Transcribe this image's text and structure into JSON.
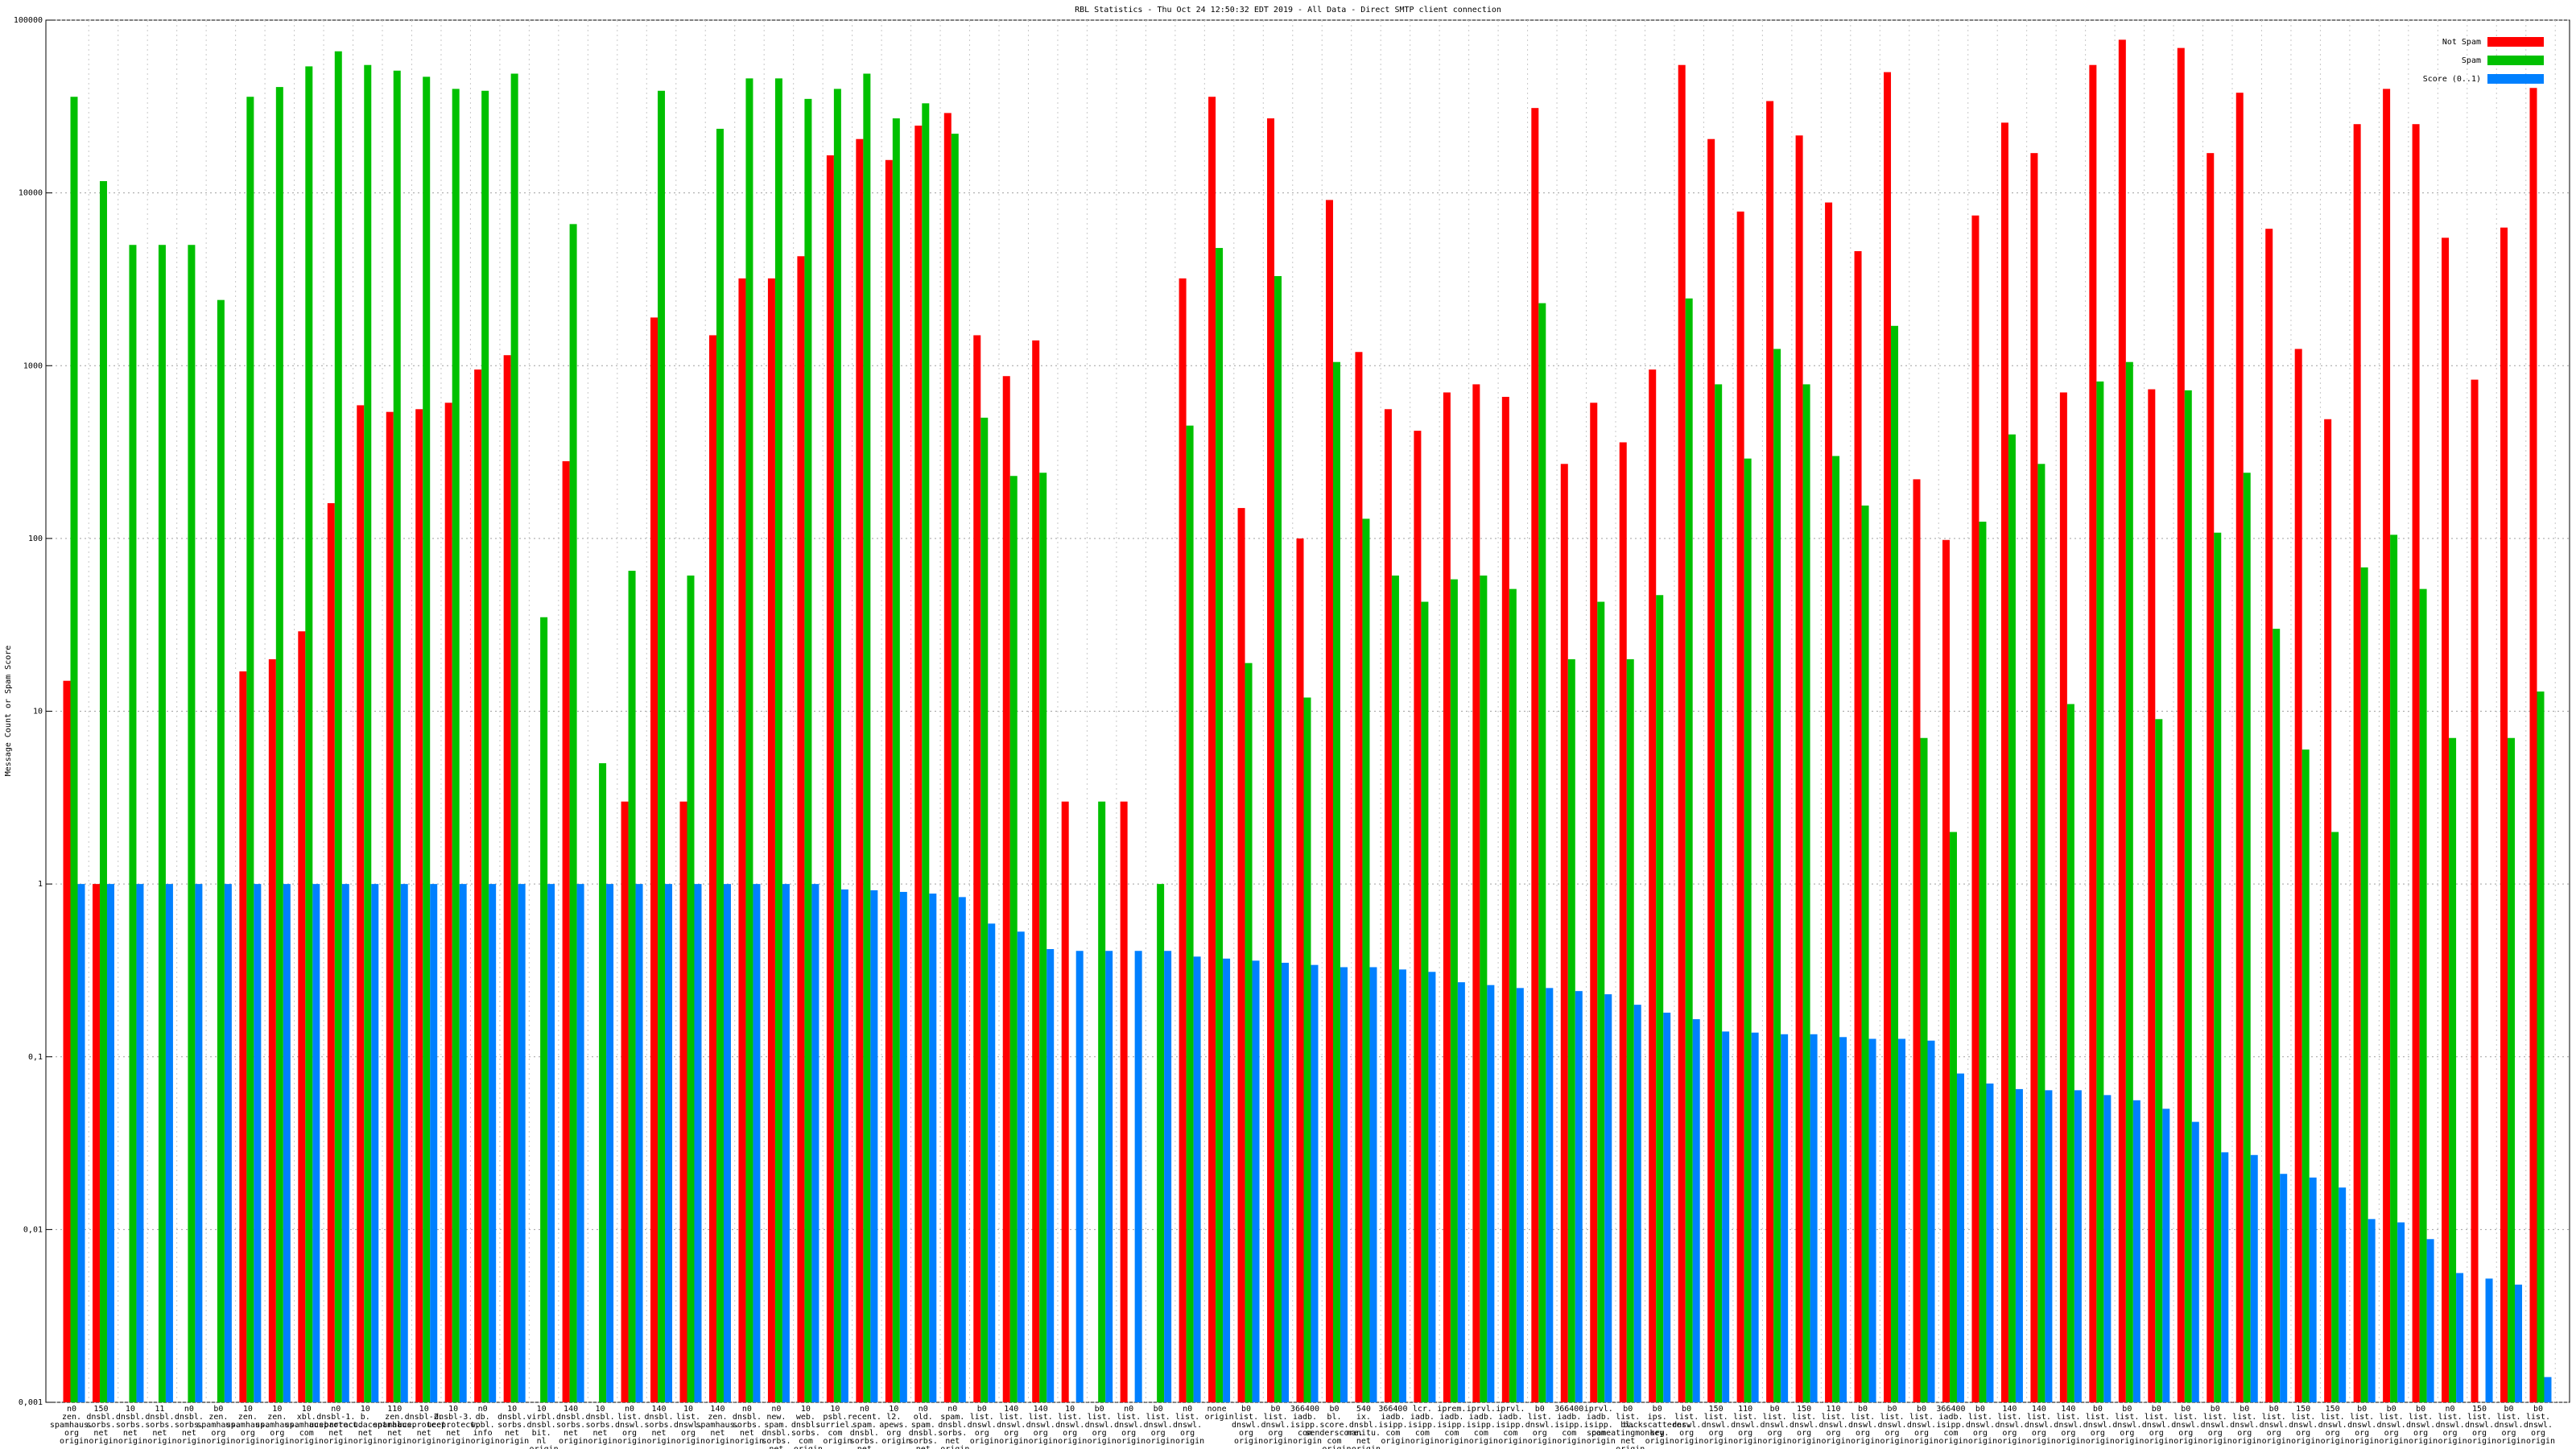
{
  "chart_data": {
    "type": "bar",
    "title": "RBL Statistics - Thu Oct 24 12:50:32 EDT 2019 - All Data - Direct SMTP client connection",
    "y_label": "Message Count or Spam Score",
    "log_scale": true,
    "grid": true,
    "legend": "top-right",
    "ylim": [
      0.001,
      100000
    ],
    "yticks": [
      {
        "value": 0.001,
        "label": "0,001"
      },
      {
        "value": 0.01,
        "label": "0,01"
      },
      {
        "value": 0.1,
        "label": "0,1"
      },
      1,
      10,
      100,
      1000,
      10000,
      100000
    ],
    "categories": [
      "n0 zen. spamhaus. org origin",
      "150 dnsbl. sorbs. net origin",
      "10 dnsbl. sorbs. net origin",
      "11 dnsbl. sorbs. net origin",
      "n0 dnsbl. sorbs. net origin",
      "b0 zen. spamhaus. org origin",
      "10 zen. spamhaus. org origin",
      "10 zen. spamhaus. org origin",
      "10 xbl. spamhaus. com origin",
      "n0 dnsbl-1. uceprotect. net origin",
      "10 b. barracudacentral. net origin",
      "110 zen. spamhaus. net origin",
      "10 dnsbl-2. uceprotect. net origin",
      "10 dnsbl-3. uceprotect. net origin",
      "n0 db. wpbl. info origin",
      "10 dnsbl. sorbs. net origin",
      "10 virbl. dnsbl. bit. nl origin",
      "140 dnsbl. sorbs. net origin",
      "10 dnsbl. sorbs. net origin",
      "n0 list. dnswl. org origin",
      "140 dnsbl. sorbs. net origin",
      "10 list. dnswl. org origin",
      "140 zen. spamhaus. net origin",
      "n0 dnsbl. sorbs. net origin",
      "n0 new. spam. dnsbl. sorbs. net origin",
      "10 web. dnsbl. sorbs. com origin",
      "10 psbl. surriel. com origin",
      "n0 recent. spam. dnsbl. sorbs. net origin",
      "10 l2. apews. org origin",
      "n0 old. spam. dnsbl. sorbs. net origin",
      "n0 spam. dnsbl. sorbs. net origin",
      "b0 list. dnswl. org origin",
      "140 list. dnswl. org origin",
      "140 list. dnswl. org origin",
      "10 list. dnswl. org origin",
      "b0 list. dnswl. org origin",
      "n0 list. dnswl. org origin",
      "b0 list. dnswl. org origin",
      "n0 list. dnswl. org origin",
      "none origin",
      "b0 list. dnswl. org origin",
      "b0 list. dnswl. org origin",
      "366400 iadb. isipp. com origin",
      "b0 bl. score. senderscore. com origin",
      "540 ix. dnsbl. manitu. net origin",
      "366400 iadb. isipp. com origin",
      "lcr. iadb. isipp. com origin",
      "iprem. iadb. isipp. com origin",
      "iprvl. iadb. isipp. com origin",
      "iprvl. iadb. isipp. com origin",
      "b0 list. dnswl. org origin",
      "366400 iadb. isipp. com origin",
      "iprvl. iadb. isipp. com origin",
      "b0 list. bl. spameatingmonkey. net origin",
      "b0 ips. backscatterer. org origin",
      "b0 list. dnswl. org origin",
      "150 list. dnswl. org origin",
      "110 list. dnswl. org origin",
      "b0 list. dnswl. org origin",
      "150 list. dnswl. org origin",
      "110 list. dnswl. org origin",
      "b0 list. dnswl. org origin",
      "b0 list. dnswl. org origin",
      "b0 list. dnswl. org origin",
      "366400 iadb. isipp. com origin",
      "b0 list. dnswl. org origin",
      "140 list. dnswl. org origin",
      "140 list. dnswl. org origin",
      "140 list. dnswl. org origin",
      "b0 list. dnswl. org origin",
      "b0 list. dnswl. org origin",
      "b0 list. dnswl. org origin",
      "b0 list. dnswl. org origin",
      "b0 list. dnswl. org origin",
      "b0 list. dnswl. org origin",
      "b0 list. dnswl. org origin",
      "150 list. dnswl. org origin",
      "150 list. dnswl. org origin",
      "b0 list. dnswl. org origin",
      "b0 list. dnswl. org origin",
      "b0 list. dnswl. org origin",
      "n0 list. dnswl. org origin",
      "150 list. dnswl. org origin",
      "b0 list. dnswl. org origin",
      "b0 list. dnswl. org origin"
    ],
    "series": [
      {
        "name": "Not Spam",
        "color": "#ff0000",
        "values": [
          15,
          1,
          null,
          null,
          null,
          null,
          17,
          20,
          29,
          160,
          590,
          540,
          560,
          610,
          950,
          1150,
          null,
          280,
          null,
          3,
          1900,
          3,
          1500,
          3200,
          3200,
          4300,
          16500,
          20500,
          15500,
          24500,
          29000,
          1500,
          870,
          1400,
          3,
          null,
          3,
          null,
          3200,
          36000,
          150,
          27000,
          100,
          9100,
          1200,
          560,
          420,
          700,
          780,
          660,
          31000,
          270,
          610,
          360,
          950,
          55000,
          20500,
          7800,
          34000,
          21500,
          8800,
          4600,
          50000,
          220,
          98,
          7400,
          25500,
          17000,
          700,
          55000,
          77000,
          730,
          69000,
          17000,
          38000,
          6200,
          1250,
          490,
          25000,
          40000,
          25000,
          5500,
          830,
          6300,
          40500
        ]
      },
      {
        "name": "Spam",
        "color": "#00c000",
        "values": [
          36000,
          11700,
          5000,
          5000,
          5000,
          2400,
          36000,
          41000,
          54000,
          66000,
          55000,
          51000,
          47000,
          40000,
          39000,
          49000,
          35,
          6600,
          5,
          65,
          39000,
          61,
          23500,
          46000,
          46000,
          35000,
          40000,
          49000,
          27000,
          33000,
          22000,
          500,
          230,
          240,
          null,
          3,
          null,
          1,
          450,
          4800,
          19,
          3300,
          12,
          1050,
          130,
          61,
          43,
          58,
          61,
          51,
          2300,
          20,
          43,
          20,
          47,
          2450,
          780,
          290,
          1250,
          780,
          300,
          155,
          1700,
          7,
          2,
          125,
          400,
          270,
          11,
          810,
          1050,
          9,
          720,
          108,
          240,
          30,
          6,
          2,
          68,
          105,
          51,
          7,
          null,
          7,
          13
        ]
      },
      {
        "name": "Score (0..1)",
        "color": "#0080ff",
        "values": [
          1,
          1,
          1,
          1,
          1,
          1,
          1,
          1,
          1,
          1,
          1,
          1,
          1,
          1,
          1,
          1,
          1,
          1,
          1,
          1,
          1,
          1,
          1,
          1,
          1,
          1,
          0.93,
          0.92,
          0.9,
          0.88,
          0.84,
          0.59,
          0.53,
          0.42,
          0.41,
          0.41,
          0.41,
          0.41,
          0.38,
          0.37,
          0.36,
          0.35,
          0.34,
          0.33,
          0.33,
          0.32,
          0.31,
          0.27,
          0.26,
          0.25,
          0.25,
          0.24,
          0.23,
          0.2,
          0.18,
          0.165,
          0.14,
          0.138,
          0.135,
          0.135,
          0.13,
          0.127,
          0.127,
          0.124,
          0.08,
          0.07,
          0.065,
          0.064,
          0.064,
          0.06,
          0.056,
          0.05,
          0.042,
          0.028,
          0.027,
          0.021,
          0.02,
          0.0175,
          0.0115,
          0.011,
          0.0088,
          0.0056,
          0.0052,
          0.0048,
          0.0014
        ]
      }
    ]
  }
}
